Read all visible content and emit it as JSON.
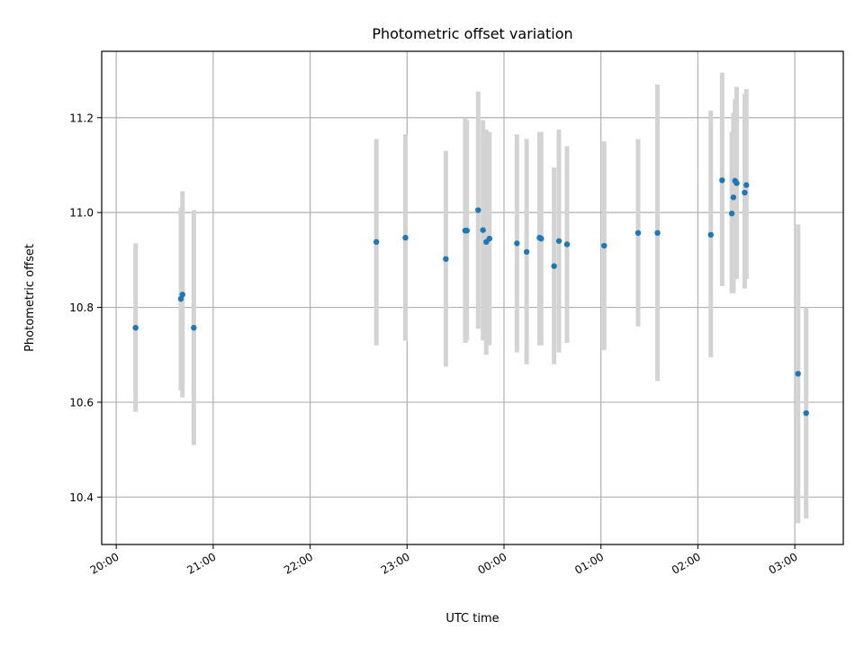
{
  "chart_data": {
    "type": "scatter",
    "title": "Photometric offset variation",
    "xlabel": "UTC time",
    "ylabel": "Photometric offset",
    "grid": true,
    "x_ticks": [
      "20:00",
      "21:00",
      "22:00",
      "23:00",
      "00:00",
      "01:00",
      "02:00",
      "03:00"
    ],
    "x_tick_hours": [
      20,
      21,
      22,
      23,
      24,
      25,
      26,
      27
    ],
    "xlim_hours": [
      19.85,
      27.5
    ],
    "y_ticks": [
      10.4,
      10.6,
      10.8,
      11.0,
      11.2
    ],
    "ylim": [
      10.3,
      11.34
    ],
    "marker_color": "#1f77b4",
    "errorbar_color": "#d3d3d3",
    "points": [
      {
        "t": "20:12",
        "y": 10.757,
        "lo": 10.58,
        "hi": 10.935
      },
      {
        "t": "20:40",
        "y": 10.818,
        "lo": 10.625,
        "hi": 11.01
      },
      {
        "t": "20:41",
        "y": 10.827,
        "lo": 10.61,
        "hi": 11.045
      },
      {
        "t": "20:48",
        "y": 10.757,
        "lo": 10.51,
        "hi": 11.005
      },
      {
        "t": "22:41",
        "y": 10.938,
        "lo": 10.72,
        "hi": 11.155
      },
      {
        "t": "22:59",
        "y": 10.947,
        "lo": 10.73,
        "hi": 11.165
      },
      {
        "t": "23:24",
        "y": 10.902,
        "lo": 10.675,
        "hi": 11.13
      },
      {
        "t": "23:36",
        "y": 10.962,
        "lo": 10.725,
        "hi": 11.2
      },
      {
        "t": "23:37",
        "y": 10.962,
        "lo": 10.73,
        "hi": 11.195
      },
      {
        "t": "23:44",
        "y": 11.005,
        "lo": 10.755,
        "hi": 11.255
      },
      {
        "t": "23:47",
        "y": 10.963,
        "lo": 10.73,
        "hi": 11.195
      },
      {
        "t": "23:49",
        "y": 10.938,
        "lo": 10.7,
        "hi": 11.175
      },
      {
        "t": "23:51",
        "y": 10.945,
        "lo": 10.72,
        "hi": 11.17
      },
      {
        "t": "00:08",
        "y": 10.935,
        "lo": 10.705,
        "hi": 11.165
      },
      {
        "t": "00:14",
        "y": 10.917,
        "lo": 10.68,
        "hi": 11.155
      },
      {
        "t": "00:22",
        "y": 10.947,
        "lo": 10.72,
        "hi": 11.17
      },
      {
        "t": "00:23",
        "y": 10.945,
        "lo": 10.72,
        "hi": 11.17
      },
      {
        "t": "00:31",
        "y": 10.887,
        "lo": 10.68,
        "hi": 11.095
      },
      {
        "t": "00:34",
        "y": 10.94,
        "lo": 10.705,
        "hi": 11.175
      },
      {
        "t": "00:39",
        "y": 10.933,
        "lo": 10.725,
        "hi": 11.14
      },
      {
        "t": "01:02",
        "y": 10.93,
        "lo": 10.71,
        "hi": 11.15
      },
      {
        "t": "01:23",
        "y": 10.957,
        "lo": 10.76,
        "hi": 11.155
      },
      {
        "t": "01:35",
        "y": 10.957,
        "lo": 10.645,
        "hi": 11.27
      },
      {
        "t": "02:08",
        "y": 10.953,
        "lo": 10.695,
        "hi": 11.215
      },
      {
        "t": "02:15",
        "y": 11.068,
        "lo": 10.845,
        "hi": 11.295
      },
      {
        "t": "02:21",
        "y": 10.998,
        "lo": 10.83,
        "hi": 11.17
      },
      {
        "t": "02:22",
        "y": 11.032,
        "lo": 10.83,
        "hi": 11.21
      },
      {
        "t": "02:23",
        "y": 11.067,
        "lo": 10.86,
        "hi": 11.24
      },
      {
        "t": "02:24",
        "y": 11.062,
        "lo": 10.86,
        "hi": 11.265
      },
      {
        "t": "02:29",
        "y": 11.042,
        "lo": 10.84,
        "hi": 11.25
      },
      {
        "t": "02:30",
        "y": 11.058,
        "lo": 10.86,
        "hi": 11.26
      },
      {
        "t": "03:02",
        "y": 10.66,
        "lo": 10.345,
        "hi": 10.975
      },
      {
        "t": "03:07",
        "y": 10.577,
        "lo": 10.355,
        "hi": 10.8
      }
    ]
  }
}
